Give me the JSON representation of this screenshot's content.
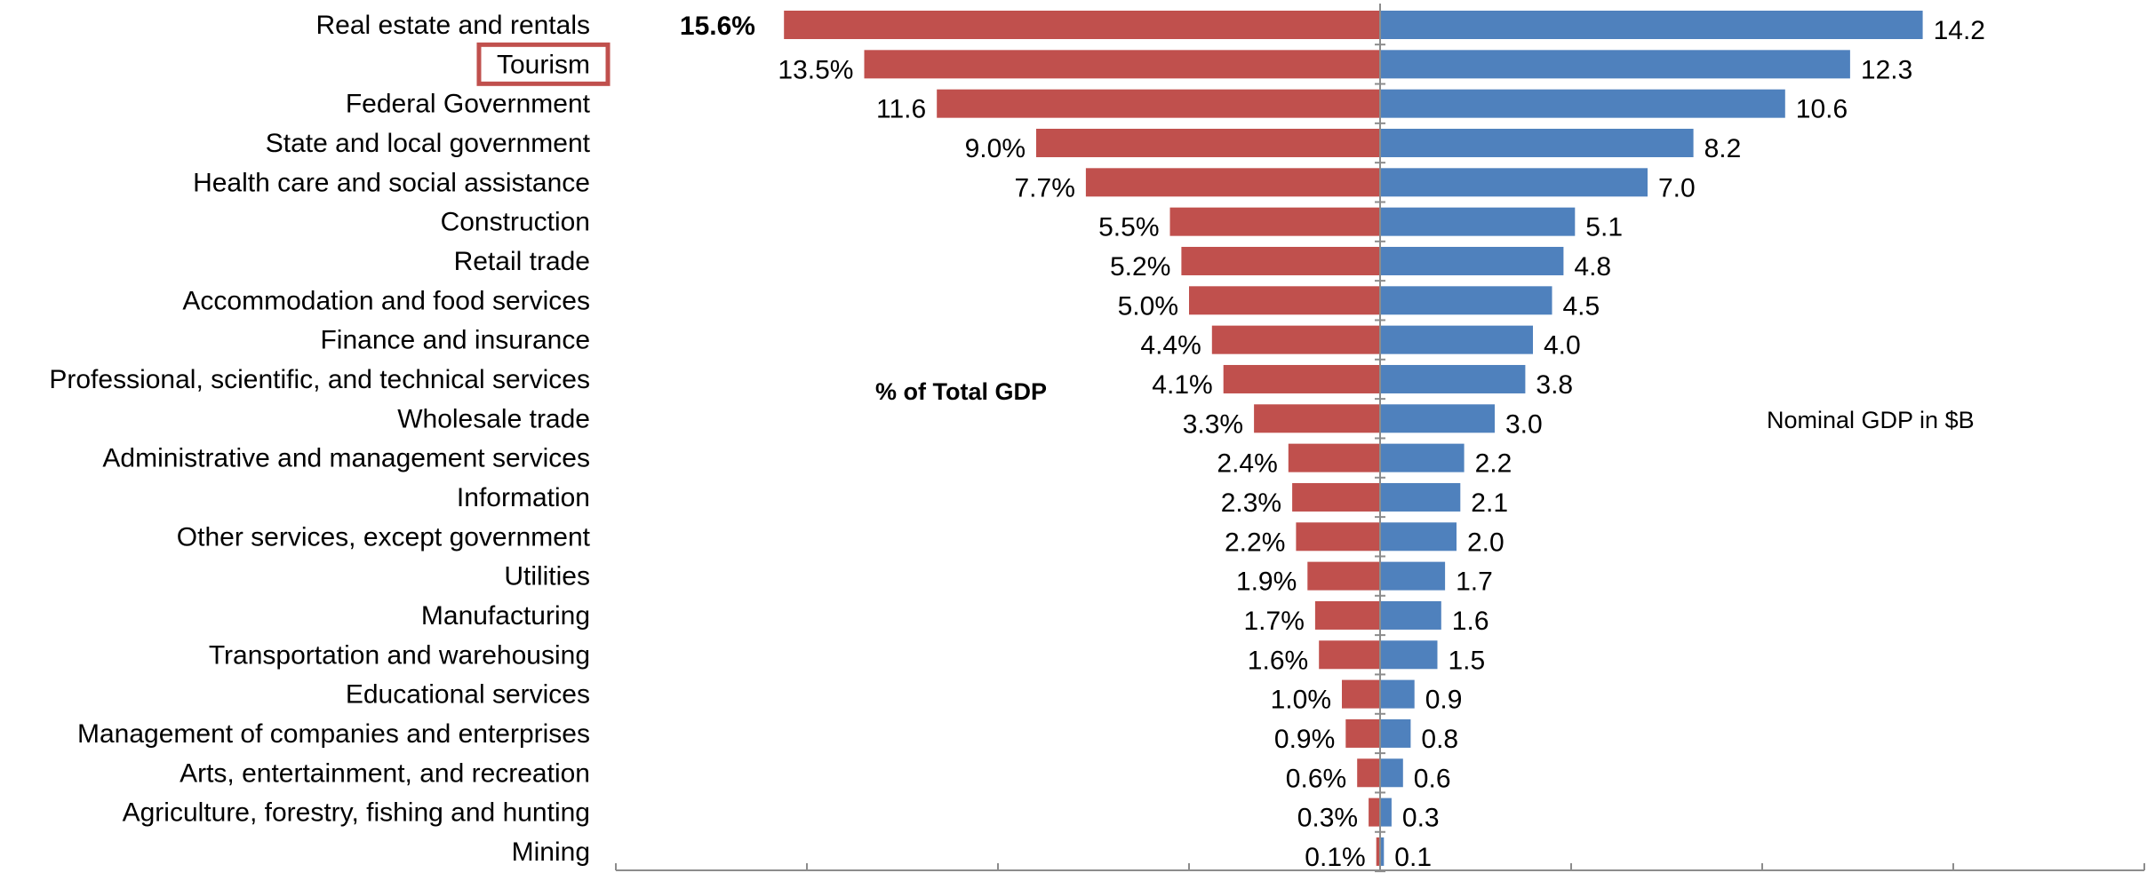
{
  "chart_data": {
    "type": "bar",
    "orientation": "horizontal-butterfly",
    "categories": [
      "Real estate and rentals",
      "Tourism",
      "Federal Government",
      "State and local government",
      "Health care and social assistance",
      "Construction",
      "Retail trade",
      "Accommodation and food services",
      "Finance and insurance",
      "Professional, scientific, and technical services",
      "Wholesale trade",
      "Administrative and management services",
      "Information",
      "Other services, except government",
      "Utilities",
      "Manufacturing",
      "Transportation and warehousing",
      "Educational services",
      "Management of companies and enterprises",
      "Arts, entertainment, and recreation",
      "Agriculture, forestry, fishing and hunting",
      "Mining"
    ],
    "highlighted_category": "Tourism",
    "series": [
      {
        "name": "% of Total GDP",
        "side": "left",
        "color": "#C0504D",
        "values": [
          15.6,
          13.5,
          11.6,
          9.0,
          7.7,
          5.5,
          5.2,
          5.0,
          4.4,
          4.1,
          3.3,
          2.4,
          2.3,
          2.2,
          1.9,
          1.7,
          1.6,
          1.0,
          0.9,
          0.6,
          0.3,
          0.1
        ],
        "labels": [
          "15.6%",
          "13.5%",
          "11.6",
          "9.0%",
          "7.7%",
          "5.5%",
          "5.2%",
          "5.0%",
          "4.4%",
          "4.1%",
          "3.3%",
          "2.4%",
          "2.3%",
          "2.2%",
          "1.9%",
          "1.7%",
          "1.6%",
          "1.0%",
          "0.9%",
          "0.6%",
          "0.3%",
          "0.1%"
        ],
        "xlim": [
          0,
          20
        ]
      },
      {
        "name": "Nominal GDP in $B",
        "side": "right",
        "color": "#4F81BD",
        "values": [
          14.2,
          12.3,
          10.6,
          8.2,
          7.0,
          5.1,
          4.8,
          4.5,
          4.0,
          3.8,
          3.0,
          2.2,
          2.1,
          2.0,
          1.7,
          1.6,
          1.5,
          0.9,
          0.8,
          0.6,
          0.3,
          0.1
        ],
        "labels": [
          "14.2",
          "12.3",
          "10.6",
          "8.2",
          "7.0",
          "5.1",
          "4.8",
          "4.5",
          "4.0",
          "3.8",
          "3.0",
          "2.2",
          "2.1",
          "2.0",
          "1.7",
          "1.6",
          "1.5",
          "0.9",
          "0.8",
          "0.6",
          "0.3",
          "0.1"
        ],
        "xlim": [
          0,
          20
        ]
      }
    ],
    "grid": false,
    "legend": "none"
  }
}
